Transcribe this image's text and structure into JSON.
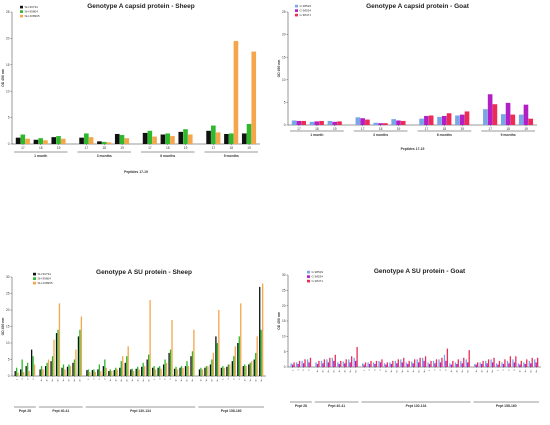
{
  "chart_data": [
    {
      "type": "bar",
      "title": "Genotype A capsid protein - Sheep",
      "xlabel": "Peptides 17-19",
      "ylabel": "OD 450 nm",
      "ylim": [
        0,
        25
      ],
      "yticks": [
        0,
        5,
        10,
        15,
        20,
        25
      ],
      "categories": [
        "17",
        "18",
        "19",
        "17",
        "18",
        "19",
        "17",
        "18",
        "19",
        "17",
        "18",
        "19"
      ],
      "groups": [
        {
          "label": "1 month",
          "span": [
            0,
            2
          ]
        },
        {
          "label": "3 months",
          "span": [
            3,
            5
          ]
        },
        {
          "label": "6 months",
          "span": [
            6,
            8
          ]
        },
        {
          "label": "9 months",
          "span": [
            9,
            11
          ]
        }
      ],
      "legend_position": "top-left",
      "series": [
        {
          "name": "SH 99734",
          "color": "#111111",
          "values": [
            1.2,
            0.8,
            1.3,
            1.2,
            0.5,
            1.9,
            2.1,
            1.8,
            2.3,
            2.5,
            1.9,
            2.0
          ]
        },
        {
          "name": "SH 99804",
          "color": "#2db82d",
          "values": [
            1.8,
            1.1,
            1.5,
            2.0,
            0.4,
            1.7,
            2.5,
            2.0,
            2.8,
            3.5,
            2.0,
            3.8
          ]
        },
        {
          "name": "SH 208995",
          "color": "#f5a54a",
          "values": [
            1.0,
            0.7,
            1.0,
            1.3,
            0.3,
            1.1,
            1.4,
            1.5,
            1.8,
            2.2,
            19.5,
            17.5
          ]
        }
      ]
    },
    {
      "type": "bar",
      "title": "Genotype A capsid protein - Goat",
      "xlabel": "Peptides 17-19",
      "ylabel": "OD 450 nm",
      "ylim": [
        0,
        25
      ],
      "yticks": [
        0,
        5,
        10,
        15,
        20,
        25
      ],
      "categories": [
        "17",
        "18",
        "19",
        "17",
        "18",
        "19",
        "17",
        "18",
        "19",
        "17",
        "18",
        "19"
      ],
      "groups": [
        {
          "label": "1 month",
          "span": [
            0,
            2
          ]
        },
        {
          "label": "3 months",
          "span": [
            3,
            5
          ]
        },
        {
          "label": "6 months",
          "span": [
            6,
            8
          ]
        },
        {
          "label": "9 months",
          "span": [
            9,
            11
          ]
        }
      ],
      "legend_position": "top-left",
      "series": [
        {
          "name": "G 98529",
          "color": "#7aa5e6",
          "values": [
            1.0,
            0.7,
            0.9,
            1.7,
            0.5,
            1.3,
            1.4,
            1.8,
            2.1,
            3.5,
            2.4,
            2.3
          ]
        },
        {
          "name": "G 98534",
          "color": "#b21fc4",
          "values": [
            0.9,
            0.8,
            0.7,
            1.5,
            0.4,
            1.0,
            2.0,
            2.0,
            2.3,
            6.8,
            4.9,
            4.5
          ]
        },
        {
          "name": "G 98471",
          "color": "#ee2b55",
          "values": [
            0.9,
            0.9,
            0.8,
            1.2,
            0.4,
            0.9,
            2.1,
            2.6,
            3.0,
            4.6,
            2.3,
            1.4
          ]
        }
      ]
    },
    {
      "type": "bar",
      "title": "Genotype A SU protein - Sheep",
      "xlabel": "",
      "ylabel": "OD 450 nm",
      "ylim": [
        0,
        30
      ],
      "yticks": [
        0,
        5,
        10,
        15,
        20,
        25,
        30
      ],
      "categories": [
        "1m",
        "3m",
        "6m",
        "9m",
        "40m1",
        "40m3",
        "40m6",
        "40m9",
        "41m1",
        "41m3",
        "41m6",
        "41m9",
        "130m1",
        "130m3",
        "130m6",
        "130m9",
        "131m1",
        "131m3",
        "131m6",
        "131m9",
        "132m1",
        "132m3",
        "132m6",
        "132m9",
        "133m1",
        "133m3",
        "133m6",
        "133m9",
        "134m1",
        "134m3",
        "134m6",
        "134m9",
        "158m1",
        "158m3",
        "158m6",
        "158m9",
        "159m1",
        "159m3",
        "159m6",
        "159m9",
        "160m1",
        "160m3",
        "160m6",
        "160m9"
      ],
      "groups": [
        {
          "label": "Pept 28",
          "span": [
            0,
            3
          ]
        },
        {
          "label": "Pept 40-41",
          "span": [
            4,
            11
          ]
        },
        {
          "label": "Pept 130-134",
          "span": [
            12,
            31
          ]
        },
        {
          "label": "Pept 158-160",
          "span": [
            32,
            43
          ]
        }
      ],
      "tick_labels": [
        "1",
        "3",
        "6",
        "9",
        "1m",
        "3m",
        "6m",
        "9m",
        "1m",
        "3m",
        "6m",
        "9m"
      ],
      "legend_position": "top-left",
      "series": [
        {
          "name": "SH 99734",
          "color": "#111111",
          "values": [
            1.5,
            2.0,
            3.0,
            8.0,
            2.0,
            3.0,
            4.5,
            13.0,
            2.5,
            2.8,
            4.0,
            12.0,
            1.8,
            1.8,
            2.0,
            3.0,
            1.5,
            1.8,
            2.5,
            4.0,
            2.0,
            2.2,
            2.8,
            5.0,
            2.5,
            2.5,
            3.5,
            7.0,
            2.2,
            2.5,
            3.0,
            6.0,
            2.0,
            2.5,
            3.5,
            12.0,
            2.5,
            2.8,
            4.5,
            10.0,
            3.0,
            3.5,
            5.0,
            27.0
          ]
        },
        {
          "name": "SH 99804",
          "color": "#2db82d",
          "values": [
            2.5,
            5.0,
            4.0,
            6.0,
            3.0,
            4.0,
            6.0,
            14.0,
            3.5,
            3.5,
            5.0,
            14.0,
            2.0,
            2.0,
            3.5,
            5.0,
            2.0,
            2.5,
            4.5,
            6.0,
            2.2,
            2.8,
            4.0,
            6.5,
            3.0,
            3.0,
            5.0,
            8.0,
            2.8,
            3.0,
            4.5,
            7.5,
            2.5,
            3.0,
            5.0,
            10.0,
            3.0,
            3.5,
            6.0,
            12.0,
            3.5,
            4.0,
            7.0,
            14.0
          ]
        },
        {
          "name": "SH 208995",
          "color": "#f5a54a",
          "values": [
            1.0,
            1.2,
            1.5,
            3.5,
            2.0,
            5.0,
            11.0,
            22.0,
            2.0,
            3.0,
            8.0,
            18.0,
            1.2,
            1.2,
            1.5,
            2.5,
            1.5,
            2.0,
            6.0,
            9.0,
            1.5,
            2.0,
            3.0,
            23.0,
            2.0,
            2.2,
            4.0,
            17.0,
            2.0,
            2.5,
            3.0,
            14.0,
            2.0,
            3.0,
            7.0,
            20.0,
            2.5,
            3.5,
            9.0,
            22.0,
            3.0,
            4.5,
            12.0,
            28.0
          ]
        }
      ]
    },
    {
      "type": "bar",
      "title": "Genotype A SU protein - Goat",
      "xlabel": "",
      "ylabel": "OD 450 nm",
      "ylim": [
        0,
        30
      ],
      "yticks": [
        0,
        5,
        10,
        15,
        20,
        25,
        30
      ],
      "categories": [
        "1m",
        "3m",
        "6m",
        "9m",
        "40m1",
        "40m3",
        "40m6",
        "40m9",
        "41m1",
        "41m3",
        "41m6",
        "41m9",
        "130m1",
        "130m3",
        "130m6",
        "130m9",
        "131m1",
        "131m3",
        "131m6",
        "131m9",
        "132m1",
        "132m3",
        "132m6",
        "132m9",
        "133m1",
        "133m3",
        "133m6",
        "133m9",
        "134m1",
        "134m3",
        "134m6",
        "134m9",
        "158m1",
        "158m3",
        "158m6",
        "158m9",
        "159m1",
        "159m3",
        "159m6",
        "159m9",
        "160m1",
        "160m3",
        "160m6",
        "160m9"
      ],
      "groups": [
        {
          "label": "Pept 28",
          "span": [
            0,
            3
          ]
        },
        {
          "label": "Pept 40-41",
          "span": [
            4,
            11
          ]
        },
        {
          "label": "Pept 130-134",
          "span": [
            12,
            31
          ]
        },
        {
          "label": "Pept 158-160",
          "span": [
            32,
            43
          ]
        }
      ],
      "tick_labels": [
        "1",
        "3",
        "6",
        "9",
        "1m",
        "3m",
        "6m",
        "9m",
        "1m",
        "3m",
        "6m",
        "9m"
      ],
      "legend_position": "top-left",
      "series": [
        {
          "name": "G 98529",
          "color": "#7aa5e6",
          "values": [
            1.2,
            1.5,
            2.0,
            2.5,
            1.5,
            2.0,
            2.5,
            3.0,
            1.5,
            1.8,
            2.5,
            3.0,
            1.2,
            1.5,
            1.5,
            2.0,
            1.2,
            1.5,
            2.0,
            2.5,
            1.5,
            1.8,
            2.5,
            3.0,
            1.5,
            2.0,
            2.5,
            4.0,
            1.2,
            1.5,
            2.0,
            2.5,
            1.0,
            1.5,
            2.0,
            2.5,
            1.2,
            1.5,
            2.0,
            2.5,
            1.2,
            1.5,
            2.0,
            2.5
          ]
        },
        {
          "name": "G 98534",
          "color": "#b21fc4",
          "values": [
            0.8,
            1.0,
            1.2,
            1.5,
            1.0,
            1.2,
            1.5,
            2.0,
            1.0,
            1.2,
            1.5,
            2.0,
            0.8,
            1.0,
            1.0,
            1.5,
            0.8,
            1.0,
            1.2,
            1.5,
            1.0,
            1.2,
            1.5,
            2.0,
            1.0,
            1.2,
            1.5,
            2.0,
            0.8,
            1.0,
            1.2,
            1.5,
            0.8,
            1.0,
            1.2,
            1.5,
            0.8,
            1.0,
            1.2,
            1.5,
            0.8,
            1.0,
            1.2,
            1.5
          ]
        },
        {
          "name": "G 98471",
          "color": "#ee2b55",
          "values": [
            1.5,
            2.0,
            2.5,
            3.0,
            2.0,
            2.5,
            3.0,
            4.0,
            2.0,
            2.5,
            3.5,
            6.5,
            1.5,
            2.0,
            2.0,
            2.5,
            1.5,
            2.0,
            2.5,
            3.0,
            2.0,
            2.5,
            3.0,
            3.5,
            2.0,
            2.5,
            3.0,
            6.0,
            2.0,
            2.5,
            3.0,
            5.5,
            1.5,
            2.0,
            2.5,
            3.0,
            2.0,
            2.5,
            3.5,
            3.5,
            2.0,
            2.5,
            3.0,
            3.0
          ]
        }
      ]
    }
  ]
}
